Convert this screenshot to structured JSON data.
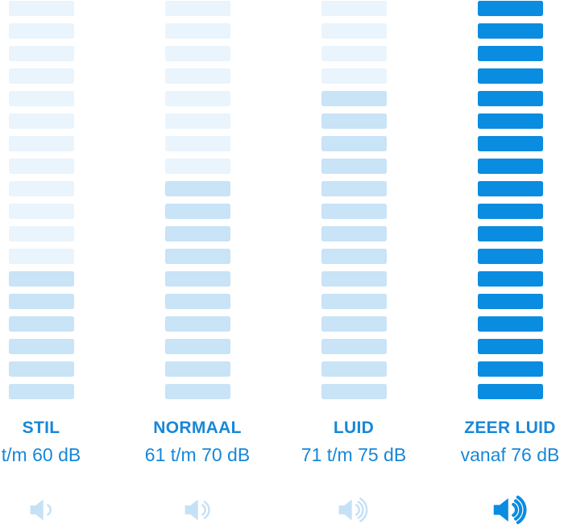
{
  "chart_data": {
    "type": "bar",
    "subtype": "segmented-volume-columns",
    "title": "",
    "categories": [
      "STIL",
      "NORMAAL",
      "LUID",
      "ZEER LUID"
    ],
    "range_labels": [
      "t/m 60 dB",
      "61 t/m 70 dB",
      "71 t/m 75 dB",
      "vanaf 76 dB"
    ],
    "total_segments_per_column": 18,
    "series": [
      {
        "name": "faint_segments_top",
        "values": [
          12,
          8,
          4,
          0
        ]
      },
      {
        "name": "filled_segments_bottom",
        "values": [
          6,
          10,
          14,
          18
        ]
      }
    ],
    "emphasized_column": [
      false,
      false,
      false,
      true
    ],
    "speaker_wave_counts": [
      1,
      2,
      3,
      3
    ],
    "legend_position": "none",
    "grid": false
  },
  "colors": {
    "faint_bar": "#e9f4fc",
    "filled_bar": "#c9e3f7",
    "strong_bar": "#0a8ce0",
    "text_blue": "#1787d9",
    "icon_light": "#c5e1f6",
    "icon_strong": "#0a8ce0",
    "background": "#ffffff"
  },
  "icons": {
    "speaker_1": "speaker-1-wave-icon",
    "speaker_2": "speaker-2-waves-icon",
    "speaker_3": "speaker-3-waves-icon",
    "speaker_3_bold": "speaker-3-waves-bold-icon"
  }
}
